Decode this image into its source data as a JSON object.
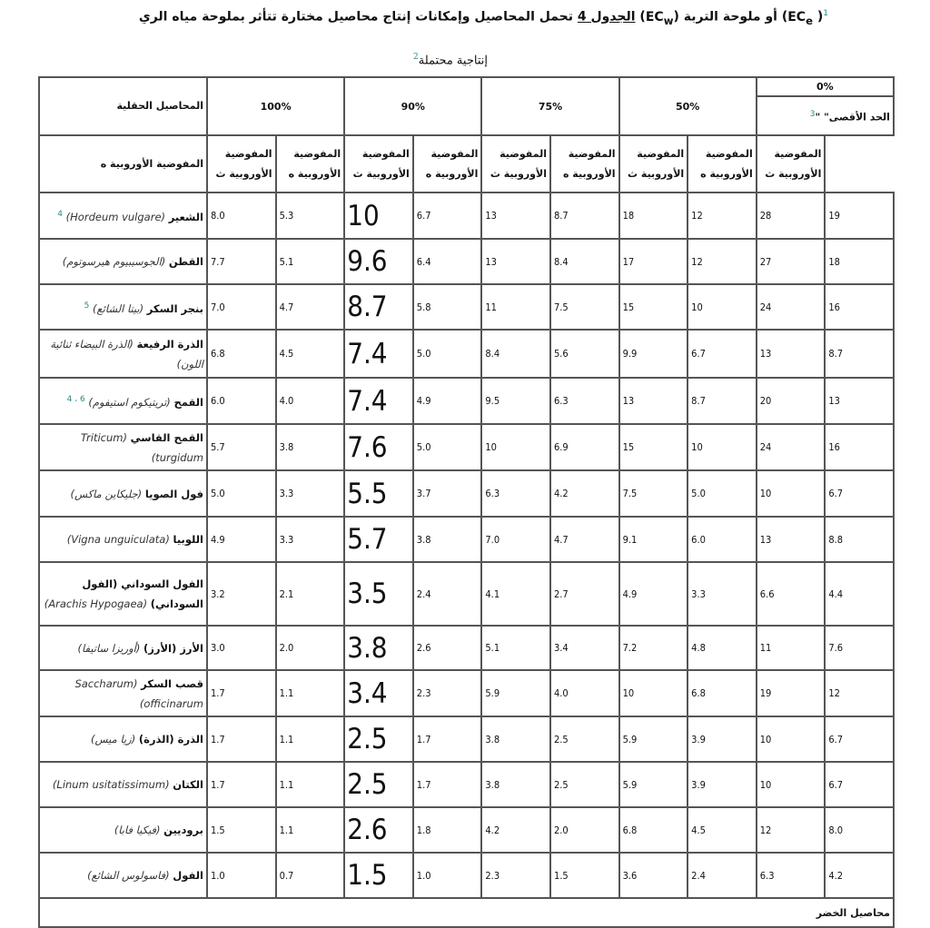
{
  "title": {
    "note1": "1",
    "part_a": "( ",
    "ec_e": "EC",
    "sub_e": "e",
    "part_b": ") أو ملوحة التربة (",
    "ec_w": "EC",
    "sub_w": "w",
    "part_c": ") ",
    "table_ref": "الجدول 4",
    "part_d": " تحمل المحاصيل وإمكانات إنتاج محاصيل مختارة تتأثر بملوحة مياه الري"
  },
  "subtitle": {
    "text": "إنتاجية محتملة",
    "note": "2"
  },
  "header": {
    "crop_col": "المحاصيل الحقلية",
    "pct_0": "0%",
    "max_label": "الحد الأقصى\" \"",
    "max_note": "3",
    "groups": [
      "100%",
      "90%",
      "75%",
      "50%"
    ],
    "sub_e": "المفوضية الأوروبية ه",
    "sub_w": "المفوضية الأوروبية ث"
  },
  "rows": [
    {
      "name": "الشعير",
      "sci": "(Hordeum vulgare)",
      "note": "4",
      "values": [
        "8.0",
        "5.3",
        "10",
        "6.7",
        "13",
        "8.7",
        "18",
        "12",
        "28",
        "19"
      ]
    },
    {
      "name": "القطن",
      "sci": "(الجوسيبيوم هيرسوتوم)",
      "note": "",
      "values": [
        "7.7",
        "5.1",
        "9.6",
        "6.4",
        "13",
        "8.4",
        "17",
        "12",
        "27",
        "18"
      ]
    },
    {
      "name": "بنجر السكر",
      "sci": "(بيتا الشائع)",
      "note": "5",
      "values": [
        "7.0",
        "4.7",
        "8.7",
        "5.8",
        "11",
        "7.5",
        "15",
        "10",
        "24",
        "16"
      ]
    },
    {
      "name": "الذرة الرفيعة",
      "sci": "(الذرة البيضاء ثنائية اللون)",
      "note": "",
      "values": [
        "6.8",
        "4.5",
        "7.4",
        "5.0",
        "8.4",
        "5.6",
        "9.9",
        "6.7",
        "13",
        "8.7"
      ]
    },
    {
      "name": "القمح",
      "sci": "(تريتيكوم استيفوم)",
      "note": "6 ، 4",
      "values": [
        "6.0",
        "4.0",
        "7.4",
        "4.9",
        "9.5",
        "6.3",
        "13",
        "8.7",
        "20",
        "13"
      ]
    },
    {
      "name": "القمح القاسي",
      "sci": "(Triticum turgidum)",
      "note": "",
      "values": [
        "5.7",
        "3.8",
        "7.6",
        "5.0",
        "10",
        "6.9",
        "15",
        "10",
        "24",
        "16"
      ]
    },
    {
      "name": "فول الصويا",
      "sci": "(جليكاين ماكس)",
      "note": "",
      "values": [
        "5.0",
        "3.3",
        "5.5",
        "3.7",
        "6.3",
        "4.2",
        "7.5",
        "5.0",
        "10",
        "6.7"
      ]
    },
    {
      "name": "اللوبيا",
      "sci": "(Vigna unguiculata)",
      "note": "",
      "values": [
        "4.9",
        "3.3",
        "5.7",
        "3.8",
        "7.0",
        "4.7",
        "9.1",
        "6.0",
        "13",
        "8.8"
      ]
    },
    {
      "name": "الفول السوداني (الفول السوداني)",
      "sci": "(Arachis Hypogaea)",
      "note": "",
      "values": [
        "3.2",
        "2.1",
        "3.5",
        "2.4",
        "4.1",
        "2.7",
        "4.9",
        "3.3",
        "6.6",
        "4.4"
      ]
    },
    {
      "name": "الأرز (الأرز)",
      "sci": "(أوريزا ساتيفا)",
      "note": "",
      "values": [
        "3.0",
        "2.0",
        "3.8",
        "2.6",
        "5.1",
        "3.4",
        "7.2",
        "4.8",
        "11",
        "7.6"
      ]
    },
    {
      "name": "قصب السكر",
      "sci": "(Saccharum officinarum)",
      "note": "",
      "values": [
        "1.7",
        "1.1",
        "3.4",
        "2.3",
        "5.9",
        "4.0",
        "10",
        "6.8",
        "19",
        "12"
      ]
    },
    {
      "name": "الذرة (الذرة)",
      "sci": "(زيا ميس)",
      "note": "",
      "values": [
        "1.7",
        "1.1",
        "2.5",
        "1.7",
        "3.8",
        "2.5",
        "5.9",
        "3.9",
        "10",
        "6.7"
      ]
    },
    {
      "name": "الكتان",
      "sci": "(Linum usitatissimum)",
      "note": "",
      "values": [
        "1.7",
        "1.1",
        "2.5",
        "1.7",
        "3.8",
        "2.5",
        "5.9",
        "3.9",
        "10",
        "6.7"
      ]
    },
    {
      "name": "بروديين",
      "sci": "(فيكيا فابا)",
      "note": "",
      "values": [
        "1.5",
        "1.1",
        "2.6",
        "1.8",
        "4.2",
        "2.0",
        "6.8",
        "4.5",
        "12",
        "8.0"
      ]
    },
    {
      "name": "الفول",
      "sci": "(فاسولوس الشائع)",
      "note": "",
      "values": [
        "1.0",
        "0.7",
        "1.5",
        "1.0",
        "2.3",
        "1.5",
        "3.6",
        "2.4",
        "6.3",
        "4.2"
      ]
    }
  ],
  "section": "محاصيل الخضر",
  "colors": {
    "border": "#555555",
    "note": "#2a8a8a"
  }
}
